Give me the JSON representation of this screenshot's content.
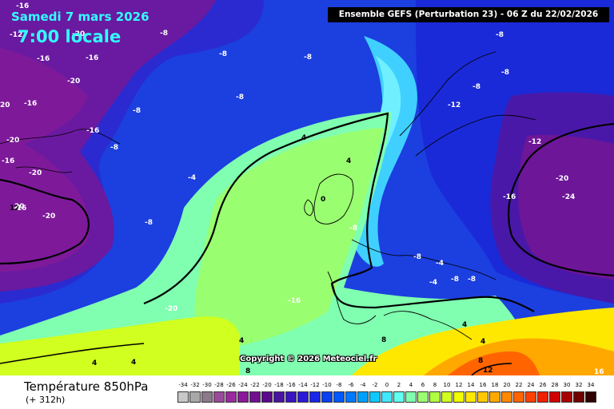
{
  "header": {
    "date": "Samedi 7 mars 2026",
    "time": "7:00 locale",
    "run_info": "Ensemble GEFS  (Perturbation 23)  -  06 Z du 22/02/2026"
  },
  "map": {
    "copyright": "Copyright © 2026 Meteociel.fr",
    "isotherm_labels": [
      "-16",
      "-12",
      "-20",
      "-16",
      "-16",
      "-20",
      "-16",
      "20",
      "-16",
      "-20",
      "-16",
      "-20",
      "-8",
      "-8",
      "-8",
      "-8",
      "-8",
      "-8",
      "-8",
      "-12",
      "-8",
      "-8",
      "-4",
      "4",
      "4",
      "0",
      "-8",
      "-8",
      "-8",
      "-4",
      "-4",
      "-12",
      "-8",
      "-8",
      "-20",
      "-16",
      "-24",
      "-20",
      "-16",
      "-20",
      "4",
      "4",
      "4",
      "4",
      "8",
      "8",
      "4",
      "8",
      "12",
      "16",
      "20",
      "12",
      "-16"
    ]
  },
  "footer": {
    "variable": "Température 850hPa",
    "lead_time": "(+ 312h)"
  },
  "scale": {
    "labels": [
      "-34",
      "-32",
      "-30",
      "-28",
      "-26",
      "-24",
      "-22",
      "-20",
      "-18",
      "-16",
      "-14",
      "-12",
      "-10",
      "-8",
      "-6",
      "-4",
      "-2",
      "0",
      "2",
      "4",
      "6",
      "8",
      "10",
      "12",
      "14",
      "16",
      "18",
      "20",
      "22",
      "24",
      "26",
      "28",
      "30",
      "32",
      "34"
    ],
    "colors": [
      "#c8c8c8",
      "#a8a8a8",
      "#8a7a8a",
      "#9a4a9a",
      "#9a2aa0",
      "#8a1a9a",
      "#701290",
      "#5a0a8a",
      "#4a14a0",
      "#3a14c0",
      "#2a1ad8",
      "#1a26e8",
      "#0a40f0",
      "#0058ff",
      "#0078ff",
      "#00a0ff",
      "#10c8ff",
      "#40e8ff",
      "#60fff0",
      "#80ffb0",
      "#9aff70",
      "#b0ff40",
      "#d0ff20",
      "#f0ff00",
      "#ffe800",
      "#ffc800",
      "#ffa800",
      "#ff8800",
      "#ff6400",
      "#ff4000",
      "#f02000",
      "#d00000",
      "#a80000",
      "#700000",
      "#300000"
    ]
  }
}
